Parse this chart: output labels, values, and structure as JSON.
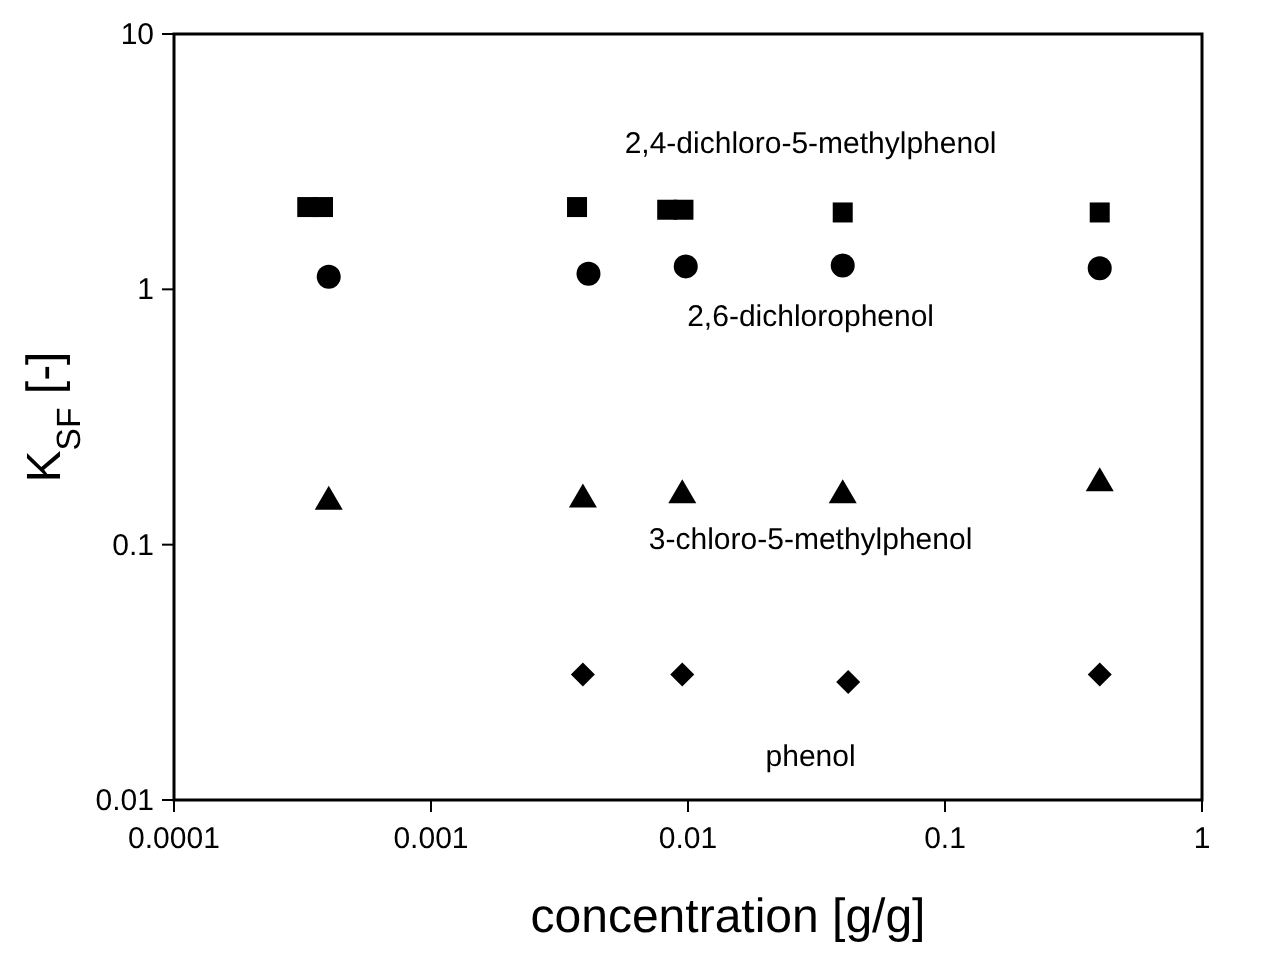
{
  "chart_data": {
    "type": "scatter",
    "xlabel": "concentration [g/g]",
    "ylabel": "K$_{SF}$ [-]",
    "log": "xy",
    "xlim": [
      0.0001,
      1
    ],
    "xticks": [
      0.0001,
      0.001,
      0.01,
      0.1,
      1
    ],
    "ylim": [
      0.01,
      10
    ],
    "yticks": [
      0.01,
      0.1,
      1,
      10
    ],
    "grid": false,
    "series": [
      {
        "name": "2,4-dichloro-5-methylphenol",
        "color": "#000000",
        "marker": "square",
        "x": [
          0.00033,
          0.00038,
          0.0037,
          0.0083,
          0.0096,
          0.04,
          0.4
        ],
        "values": [
          2.1,
          2.1,
          2.1,
          2.05,
          2.05,
          2.0,
          2.0
        ]
      },
      {
        "name": "2,6-dichlorophenol",
        "color": "#000000",
        "marker": "circle",
        "x": [
          0.0004,
          0.0041,
          0.0098,
          0.04,
          0.4
        ],
        "values": [
          1.12,
          1.15,
          1.23,
          1.24,
          1.21
        ]
      },
      {
        "name": "3-chloro-5-methylphenol",
        "color": "#000000",
        "marker": "triangle",
        "x": [
          0.0004,
          0.0039,
          0.0095,
          0.04,
          0.4
        ],
        "values": [
          0.15,
          0.153,
          0.159,
          0.159,
          0.177
        ]
      },
      {
        "name": "phenol",
        "color": "#000000",
        "marker": "diamond",
        "x": [
          0.0039,
          0.0095,
          0.042,
          0.4
        ],
        "values": [
          0.031,
          0.031,
          0.029,
          0.031
        ]
      }
    ]
  }
}
